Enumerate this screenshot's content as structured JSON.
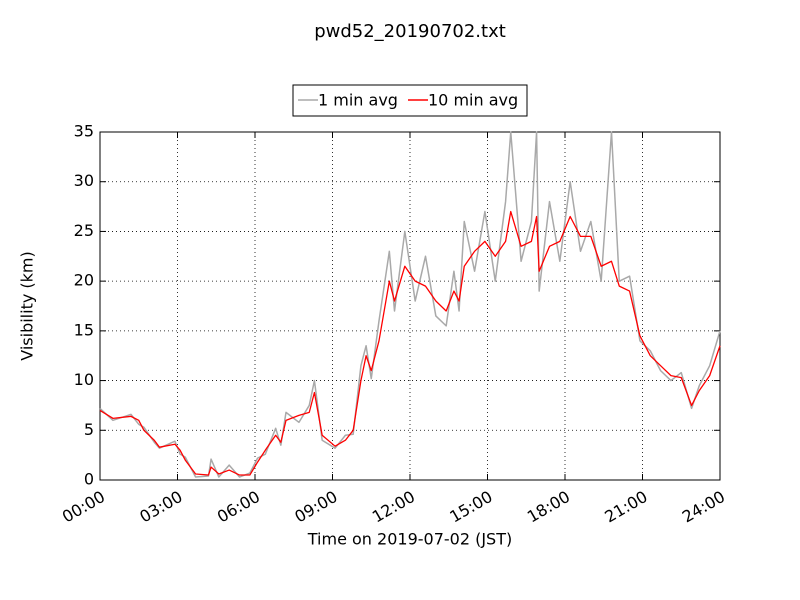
{
  "chart_data": {
    "type": "line",
    "title": "pwd52_20190702.txt",
    "x_label": "Time on 2019-07-02 (JST)",
    "y_label": "Visibility (km)",
    "xlim": [
      0,
      24
    ],
    "ylim": [
      0,
      35
    ],
    "xticks": [
      {
        "value": 0,
        "label": "00:00"
      },
      {
        "value": 3,
        "label": "03:00"
      },
      {
        "value": 6,
        "label": "06:00"
      },
      {
        "value": 9,
        "label": "09:00"
      },
      {
        "value": 12,
        "label": "12:00"
      },
      {
        "value": 15,
        "label": "15:00"
      },
      {
        "value": 18,
        "label": "18:00"
      },
      {
        "value": 21,
        "label": "21:00"
      },
      {
        "value": 24,
        "label": "24:00"
      }
    ],
    "yticks": [
      0,
      5,
      10,
      15,
      20,
      25,
      30,
      35
    ],
    "grid": true,
    "legend": "top",
    "x": [
      0,
      0.5,
      1.2,
      1.5,
      1.7,
      2.1,
      2.3,
      2.9,
      3.1,
      3.3,
      3.7,
      4.2,
      4.3,
      4.6,
      5.0,
      5.4,
      5.8,
      6.1,
      6.4,
      6.8,
      7.0,
      7.2,
      7.7,
      8.1,
      8.3,
      8.6,
      9.1,
      9.5,
      9.8,
      10.1,
      10.3,
      10.5,
      10.8,
      11.2,
      11.4,
      11.8,
      12.2,
      12.6,
      13.0,
      13.4,
      13.7,
      13.9,
      14.1,
      14.5,
      14.9,
      15.3,
      15.7,
      15.9,
      16.3,
      16.7,
      16.9,
      17.0,
      17.4,
      17.8,
      18.2,
      18.6,
      19.0,
      19.4,
      19.8,
      20.1,
      20.5,
      20.9,
      21.3,
      21.7,
      22.1,
      22.5,
      22.9,
      23.2,
      23.6,
      24.0
    ],
    "series": [
      {
        "name": "1 min avg",
        "color": "#a9a9a9",
        "values": [
          7.2,
          6.0,
          6.6,
          5.6,
          5.3,
          3.8,
          3.2,
          3.9,
          2.6,
          2.3,
          0.3,
          0.4,
          2.1,
          0.3,
          1.5,
          0.3,
          0.7,
          2.2,
          2.6,
          5.2,
          3.5,
          6.8,
          5.8,
          7.5,
          10,
          4,
          3.2,
          4.5,
          4.6,
          11.5,
          13.5,
          10.2,
          16,
          23,
          17,
          25,
          18,
          22.5,
          16.5,
          15.5,
          21,
          17,
          26,
          21,
          27,
          20,
          28,
          35,
          22,
          26,
          35,
          19,
          28,
          22,
          30,
          23,
          26,
          20,
          35,
          20,
          20.5,
          14,
          13,
          11,
          10,
          10.8,
          7.2,
          9.5,
          11.5,
          15
        ]
      },
      {
        "name": "10 min avg",
        "color": "#ff0000",
        "values": [
          7,
          6.2,
          6.4,
          6.0,
          5.0,
          4.0,
          3.3,
          3.6,
          3.0,
          2.0,
          0.6,
          0.5,
          1.3,
          0.6,
          1.0,
          0.5,
          0.5,
          1.8,
          3.0,
          4.5,
          3.8,
          6.0,
          6.5,
          6.8,
          8.8,
          4.5,
          3.4,
          4.0,
          5.0,
          10,
          12.5,
          11,
          14,
          20,
          18,
          21.5,
          20,
          19.5,
          18,
          17,
          19,
          18,
          21.5,
          23,
          24,
          22.5,
          24,
          27,
          23.5,
          24,
          26.5,
          21,
          23.5,
          24,
          26.5,
          24.5,
          24.5,
          21.5,
          22,
          19.5,
          19,
          14.5,
          12.5,
          11.5,
          10.5,
          10.3,
          7.5,
          9.0,
          10.5,
          13.5
        ]
      }
    ]
  }
}
